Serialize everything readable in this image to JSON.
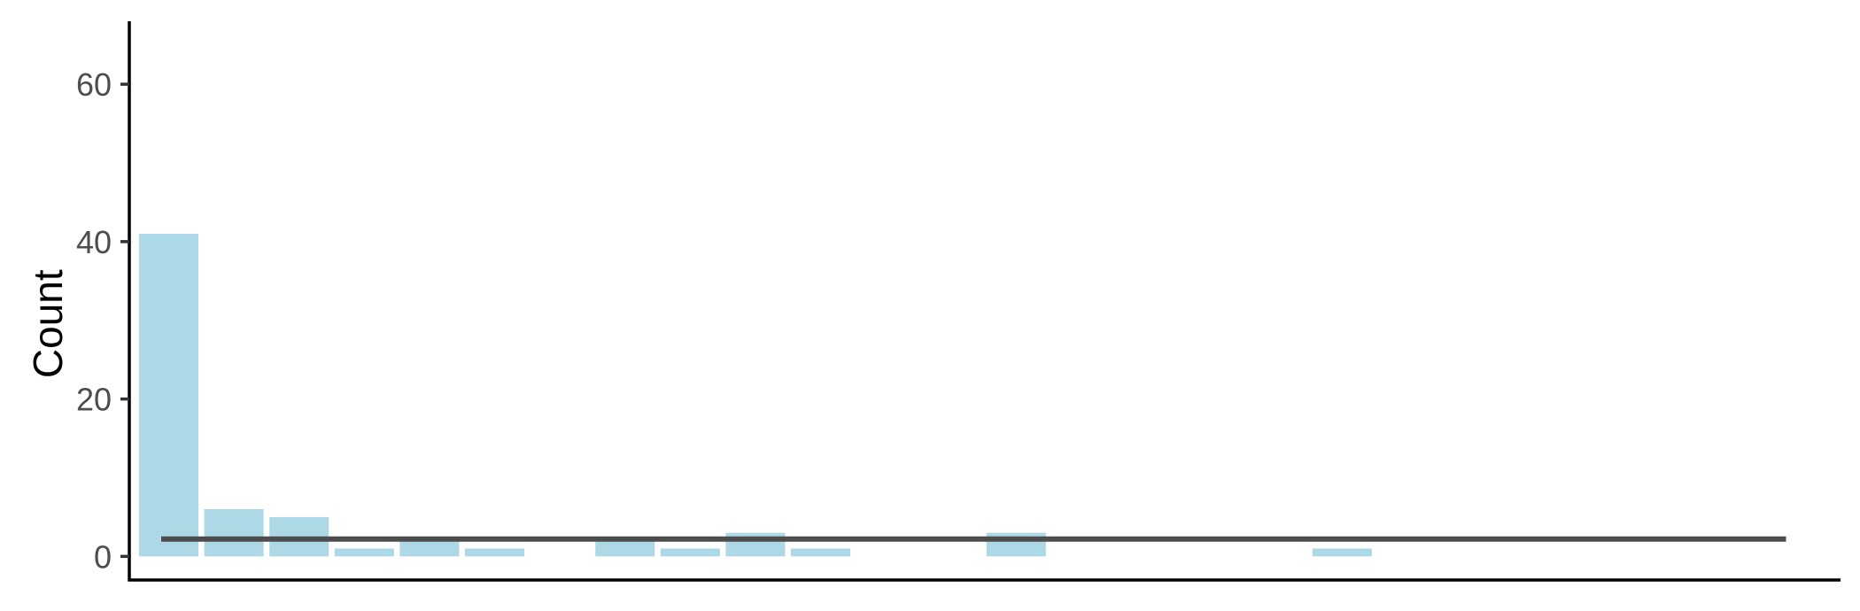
{
  "chart_data": {
    "type": "bar",
    "title": "",
    "xlabel": "",
    "ylabel": "Count",
    "ylim": [
      -3,
      68
    ],
    "y_ticks": [
      0,
      20,
      40,
      60
    ],
    "x_ticks_shown": false,
    "grid": false,
    "legend": "none",
    "bar_color": "#add8e6",
    "reference_line": {
      "y": 2.2,
      "x_start_bin": 1,
      "x_end_bin": 26,
      "color": "#4d4d4d"
    },
    "x": [
      1,
      2,
      3,
      4,
      5,
      6,
      7,
      8,
      9,
      10,
      11,
      12,
      13,
      14,
      15,
      16,
      17,
      18,
      19,
      20,
      21,
      22,
      23,
      24,
      25,
      26
    ],
    "values": [
      41,
      6,
      5,
      1,
      2,
      1,
      0,
      2,
      1,
      3,
      1,
      0,
      0,
      3,
      0,
      0,
      0,
      0,
      1,
      0,
      0,
      0,
      0,
      0,
      0,
      0
    ]
  }
}
